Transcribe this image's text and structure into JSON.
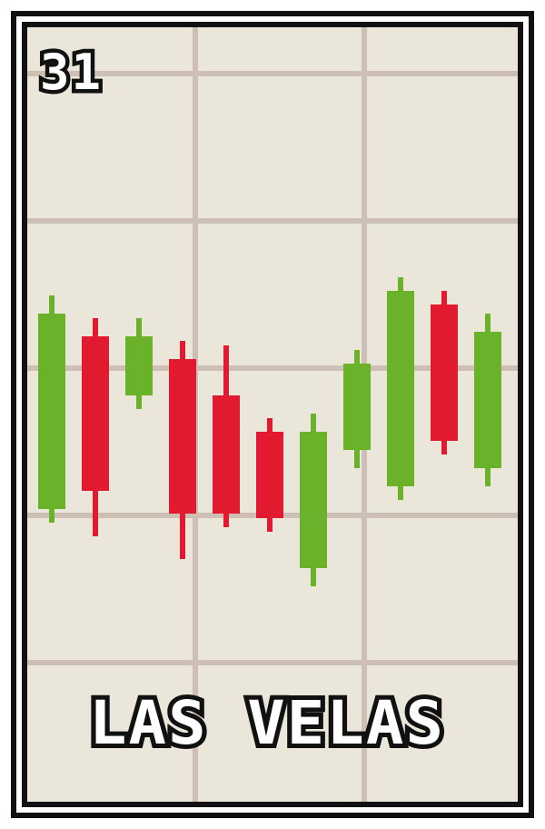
{
  "card": {
    "number": "31",
    "title": "LAS VELAS"
  },
  "colors": {
    "background": "#ebe6da",
    "frame": "#111111",
    "grid": "#cdbfb4",
    "bullish": "#6ab22a",
    "bearish": "#e11a30",
    "label_fill": "#ffffff"
  },
  "chart_data": {
    "type": "candlestick",
    "grid": true,
    "candles": [
      {
        "direction": "up",
        "open": 28.0,
        "close": 71.0,
        "high": 75.0,
        "low": 25.0
      },
      {
        "direction": "down",
        "open": 66.0,
        "close": 32.0,
        "high": 70.0,
        "low": 22.0
      },
      {
        "direction": "up",
        "open": 53.0,
        "close": 66.0,
        "high": 70.0,
        "low": 50.0
      },
      {
        "direction": "down",
        "open": 61.0,
        "close": 27.0,
        "high": 65.0,
        "low": 17.0
      },
      {
        "direction": "down",
        "open": 53.0,
        "close": 27.0,
        "high": 64.0,
        "low": 24.0
      },
      {
        "direction": "down",
        "open": 45.0,
        "close": 26.0,
        "high": 48.0,
        "low": 23.0
      },
      {
        "direction": "up",
        "open": 15.0,
        "close": 45.0,
        "high": 49.0,
        "low": 11.0
      },
      {
        "direction": "up",
        "open": 41.0,
        "close": 60.0,
        "high": 63.0,
        "low": 37.0
      },
      {
        "direction": "up",
        "open": 33.0,
        "close": 76.0,
        "high": 79.0,
        "low": 30.0
      },
      {
        "direction": "down",
        "open": 73.0,
        "close": 43.0,
        "high": 76.0,
        "low": 40.0
      },
      {
        "direction": "up",
        "open": 37.0,
        "close": 67.0,
        "high": 71.0,
        "low": 33.0
      }
    ]
  }
}
